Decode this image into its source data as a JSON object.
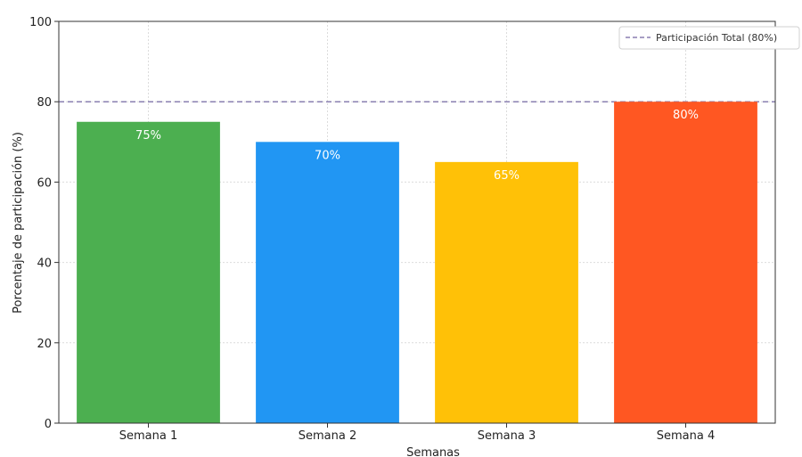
{
  "chart_data": {
    "type": "bar",
    "title": "",
    "xlabel": "Semanas",
    "ylabel": "Porcentaje de participación (%)",
    "ylim": [
      0,
      100
    ],
    "yticks": [
      0,
      20,
      40,
      60,
      80,
      100
    ],
    "categories": [
      "Semana 1",
      "Semana 2",
      "Semana 3",
      "Semana 4"
    ],
    "values": [
      75,
      70,
      65,
      80
    ],
    "value_labels": [
      "75%",
      "70%",
      "65%",
      "80%"
    ],
    "colors": [
      "#4caf50",
      "#2196f3",
      "#ffc107",
      "#ff5722"
    ],
    "reference_line": {
      "value": 80,
      "label": "Participación Total (80%)",
      "style": "dashed",
      "color": "#8a7fb0"
    },
    "grid": true,
    "legend_position": "top-right"
  }
}
